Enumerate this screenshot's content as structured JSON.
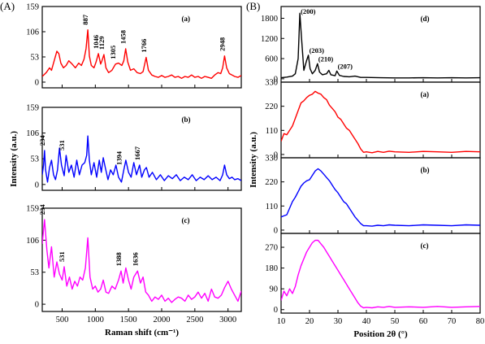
{
  "panel_labels": {
    "A": "(A)",
    "B": "(B)"
  },
  "chart_data": [
    {
      "id": "A",
      "type": "line",
      "xlabel": "Raman shift (cm⁻¹)",
      "ylabel": "Intensity (a.u.)",
      "xlim": [
        200,
        3200
      ],
      "xticks": [
        "500",
        "1000",
        "1500",
        "2000",
        "2500",
        "3000"
      ],
      "grid": false,
      "subplots": [
        {
          "label": "(a)",
          "color": "#ff0000",
          "ylim": [
            -12,
            159
          ],
          "yticks": [
            "0",
            "53",
            "106",
            "159"
          ],
          "x": [
            200,
            260,
            310,
            340,
            380,
            420,
            450,
            480,
            520,
            560,
            600,
            650,
            700,
            750,
            790,
            830,
            860,
            887,
            910,
            940,
            980,
            1010,
            1046,
            1080,
            1100,
            1129,
            1160,
            1200,
            1250,
            1305,
            1350,
            1400,
            1430,
            1458,
            1490,
            1530,
            1580,
            1630,
            1680,
            1720,
            1766,
            1800,
            1850,
            1900,
            1950,
            2000,
            2050,
            2100,
            2150,
            2200,
            2250,
            2300,
            2350,
            2400,
            2450,
            2500,
            2550,
            2600,
            2650,
            2700,
            2750,
            2800,
            2850,
            2890,
            2920,
            2948,
            2980,
            3020,
            3060,
            3100,
            3150,
            3200
          ],
          "y": [
            12,
            20,
            30,
            25,
            45,
            65,
            60,
            40,
            30,
            35,
            45,
            38,
            30,
            40,
            35,
            48,
            70,
            110,
            55,
            35,
            30,
            42,
            60,
            38,
            45,
            58,
            30,
            20,
            25,
            38,
            40,
            35,
            45,
            70,
            42,
            25,
            28,
            20,
            18,
            22,
            52,
            25,
            15,
            12,
            10,
            14,
            10,
            12,
            15,
            10,
            12,
            8,
            12,
            10,
            15,
            10,
            12,
            8,
            12,
            10,
            8,
            15,
            20,
            18,
            30,
            55,
            30,
            18,
            15,
            12,
            10,
            14
          ],
          "annotations": [
            {
              "text": "887",
              "x": 887,
              "y": 110
            },
            {
              "text": "1046",
              "x": 1046,
              "y": 60
            },
            {
              "text": "1129",
              "x": 1129,
              "y": 58
            },
            {
              "text": "1305",
              "x": 1305,
              "y": 38
            },
            {
              "text": "1458",
              "x": 1458,
              "y": 70
            },
            {
              "text": "1766",
              "x": 1766,
              "y": 52
            },
            {
              "text": "2948",
              "x": 2948,
              "y": 55
            }
          ]
        },
        {
          "label": "(b)",
          "color": "#0000ff",
          "ylim": [
            -12,
            159
          ],
          "yticks": [
            "0",
            "53",
            "106",
            "159"
          ],
          "x": [
            200,
            220,
            234,
            250,
            280,
            310,
            340,
            370,
            400,
            430,
            460,
            490,
            531,
            560,
            600,
            640,
            680,
            720,
            760,
            800,
            840,
            870,
            887,
            910,
            940,
            980,
            1020,
            1060,
            1090,
            1120,
            1150,
            1190,
            1230,
            1270,
            1310,
            1350,
            1394,
            1430,
            1460,
            1500,
            1540,
            1580,
            1620,
            1667,
            1700,
            1740,
            1770,
            1810,
            1860,
            1920,
            1980,
            2040,
            2100,
            2160,
            2220,
            2280,
            2340,
            2400,
            2460,
            2520,
            2580,
            2640,
            2700,
            2760,
            2820,
            2880,
            2920,
            2948,
            2980,
            3020,
            3060,
            3100,
            3150,
            3200
          ],
          "y": [
            20,
            40,
            70,
            30,
            5,
            35,
            50,
            20,
            10,
            30,
            75,
            40,
            18,
            60,
            25,
            40,
            15,
            50,
            20,
            40,
            45,
            60,
            100,
            50,
            20,
            45,
            15,
            50,
            25,
            55,
            35,
            10,
            30,
            20,
            40,
            15,
            5,
            30,
            50,
            25,
            15,
            45,
            20,
            40,
            15,
            30,
            35,
            15,
            25,
            10,
            20,
            8,
            18,
            12,
            20,
            8,
            15,
            10,
            20,
            8,
            15,
            10,
            18,
            10,
            15,
            8,
            20,
            40,
            20,
            12,
            15,
            10,
            12,
            8
          ],
          "annotations": [
            {
              "text": "234",
              "x": 234,
              "y": 70
            },
            {
              "text": "531",
              "x": 531,
              "y": 60
            },
            {
              "text": "1394",
              "x": 1394,
              "y": 30
            },
            {
              "text": "1667",
              "x": 1667,
              "y": 40
            }
          ]
        },
        {
          "label": "(c)",
          "color": "#ff00ff",
          "ylim": [
            -12,
            159
          ],
          "yticks": [
            "0",
            "53",
            "106",
            "159"
          ],
          "x": [
            200,
            234,
            270,
            300,
            340,
            380,
            420,
            460,
            500,
            531,
            570,
            610,
            650,
            690,
            730,
            770,
            810,
            850,
            887,
            920,
            960,
            1000,
            1040,
            1080,
            1120,
            1160,
            1200,
            1250,
            1300,
            1350,
            1388,
            1420,
            1460,
            1500,
            1540,
            1580,
            1636,
            1680,
            1720,
            1760,
            1800,
            1850,
            1900,
            1950,
            2000,
            2050,
            2100,
            2150,
            2200,
            2250,
            2300,
            2350,
            2400,
            2450,
            2500,
            2550,
            2600,
            2650,
            2700,
            2750,
            2800,
            2850,
            2900,
            2950,
            3000,
            3050,
            3100,
            3150,
            3200
          ],
          "y": [
            100,
            140,
            90,
            60,
            95,
            45,
            70,
            50,
            40,
            62,
            30,
            45,
            25,
            38,
            30,
            45,
            40,
            60,
            110,
            45,
            25,
            30,
            20,
            25,
            40,
            20,
            18,
            30,
            25,
            40,
            55,
            35,
            60,
            40,
            25,
            45,
            55,
            35,
            45,
            20,
            15,
            5,
            12,
            8,
            15,
            5,
            10,
            3,
            8,
            12,
            10,
            5,
            15,
            8,
            12,
            20,
            10,
            18,
            5,
            25,
            12,
            10,
            15,
            28,
            38,
            25,
            15,
            5,
            22
          ],
          "annotations": [
            {
              "text": "234",
              "x": 234,
              "y": 140
            },
            {
              "text": "531",
              "x": 531,
              "y": 62
            },
            {
              "text": "1388",
              "x": 1388,
              "y": 55
            },
            {
              "text": "1636",
              "x": 1636,
              "y": 55
            }
          ]
        }
      ]
    },
    {
      "id": "B",
      "type": "line",
      "xlabel": "Position 2θ (°)",
      "ylabel": "Intensity (a.u.)",
      "xlim": [
        10,
        80
      ],
      "xticks": [
        "10",
        "20",
        "30",
        "40",
        "50",
        "60",
        "70",
        "80"
      ],
      "grid": false,
      "subplots": [
        {
          "label": "(d)",
          "color": "#000000",
          "ylim": [
            -100,
            2150
          ],
          "yticks": [
            "0",
            "600",
            "1200",
            "1800"
          ],
          "x": [
            10,
            12,
            14,
            15,
            16,
            16.6,
            17.2,
            18,
            19,
            19.6,
            20.2,
            21,
            22,
            22.8,
            23.5,
            24.5,
            26,
            26.8,
            27.5,
            29,
            29.6,
            30.5,
            32,
            34,
            36,
            38,
            40,
            45,
            50,
            55,
            60,
            65,
            70,
            75,
            80
          ],
          "y": [
            30,
            50,
            80,
            150,
            600,
            1950,
            1200,
            250,
            550,
            700,
            300,
            150,
            250,
            450,
            200,
            120,
            150,
            250,
            120,
            90,
            230,
            100,
            70,
            60,
            80,
            40,
            40,
            30,
            25,
            25,
            30,
            25,
            30,
            25,
            30
          ],
          "annotations": [
            {
              "text": "(200)",
              "x": 16.6,
              "y": 1950
            },
            {
              "text": "(203)",
              "x": 19.6,
              "y": 700
            },
            {
              "text": "(210)",
              "x": 22.8,
              "y": 450
            },
            {
              "text": "(207)",
              "x": 29.6,
              "y": 230
            }
          ]
        },
        {
          "label": "(a)",
          "color": "#ff0000",
          "ylim": [
            -15,
            330
          ],
          "yticks": [
            "0",
            "110",
            "220",
            "330"
          ],
          "x": [
            10,
            11,
            12,
            13,
            14,
            15,
            16,
            17,
            18,
            19,
            20,
            21,
            22,
            23,
            24,
            25,
            26,
            27,
            28,
            29,
            30,
            31,
            32,
            33,
            34,
            35,
            36,
            37,
            38,
            39,
            40,
            42,
            44,
            46,
            48,
            50,
            55,
            60,
            65,
            70,
            75,
            80
          ],
          "y": [
            60,
            95,
            90,
            110,
            130,
            165,
            200,
            235,
            245,
            260,
            270,
            275,
            288,
            280,
            275,
            260,
            250,
            225,
            210,
            195,
            170,
            160,
            140,
            120,
            110,
            90,
            70,
            50,
            25,
            10,
            12,
            8,
            14,
            10,
            15,
            12,
            10,
            14,
            12,
            10,
            14,
            12
          ],
          "annotations": []
        },
        {
          "label": "(b)",
          "color": "#0000ff",
          "ylim": [
            -15,
            330
          ],
          "yticks": [
            "0",
            "110",
            "220",
            "330"
          ],
          "x": [
            10,
            11,
            12,
            13,
            14,
            15,
            16,
            17,
            18,
            19,
            20,
            21,
            22,
            23,
            24,
            25,
            26,
            27,
            28,
            29,
            30,
            31,
            32,
            33,
            34,
            35,
            36,
            37,
            38,
            39,
            40,
            42,
            44,
            46,
            48,
            50,
            55,
            60,
            65,
            70,
            75,
            80
          ],
          "y": [
            60,
            65,
            70,
            100,
            130,
            150,
            175,
            200,
            215,
            225,
            230,
            250,
            270,
            280,
            270,
            255,
            240,
            225,
            205,
            185,
            170,
            150,
            130,
            120,
            100,
            80,
            60,
            45,
            30,
            20,
            20,
            18,
            22,
            20,
            24,
            22,
            20,
            24,
            22,
            20,
            24,
            22
          ],
          "annotations": []
        },
        {
          "label": "(c)",
          "color": "#ff00ff",
          "ylim": [
            -15,
            330
          ],
          "yticks": [
            "0",
            "90",
            "180",
            "270"
          ],
          "x": [
            10,
            11,
            12,
            13,
            14,
            15,
            16,
            17,
            18,
            19,
            20,
            21,
            22,
            23,
            24,
            25,
            26,
            27,
            28,
            29,
            30,
            31,
            32,
            33,
            34,
            35,
            36,
            37,
            38,
            39,
            40,
            42,
            44,
            46,
            48,
            50,
            55,
            60,
            65,
            70,
            75,
            80
          ],
          "y": [
            40,
            80,
            60,
            90,
            70,
            100,
            150,
            190,
            220,
            250,
            270,
            290,
            300,
            300,
            285,
            270,
            250,
            230,
            210,
            190,
            170,
            150,
            130,
            110,
            90,
            70,
            50,
            30,
            15,
            8,
            10,
            8,
            12,
            10,
            14,
            10,
            12,
            10,
            14,
            10,
            12,
            14
          ],
          "annotations": []
        }
      ]
    }
  ]
}
